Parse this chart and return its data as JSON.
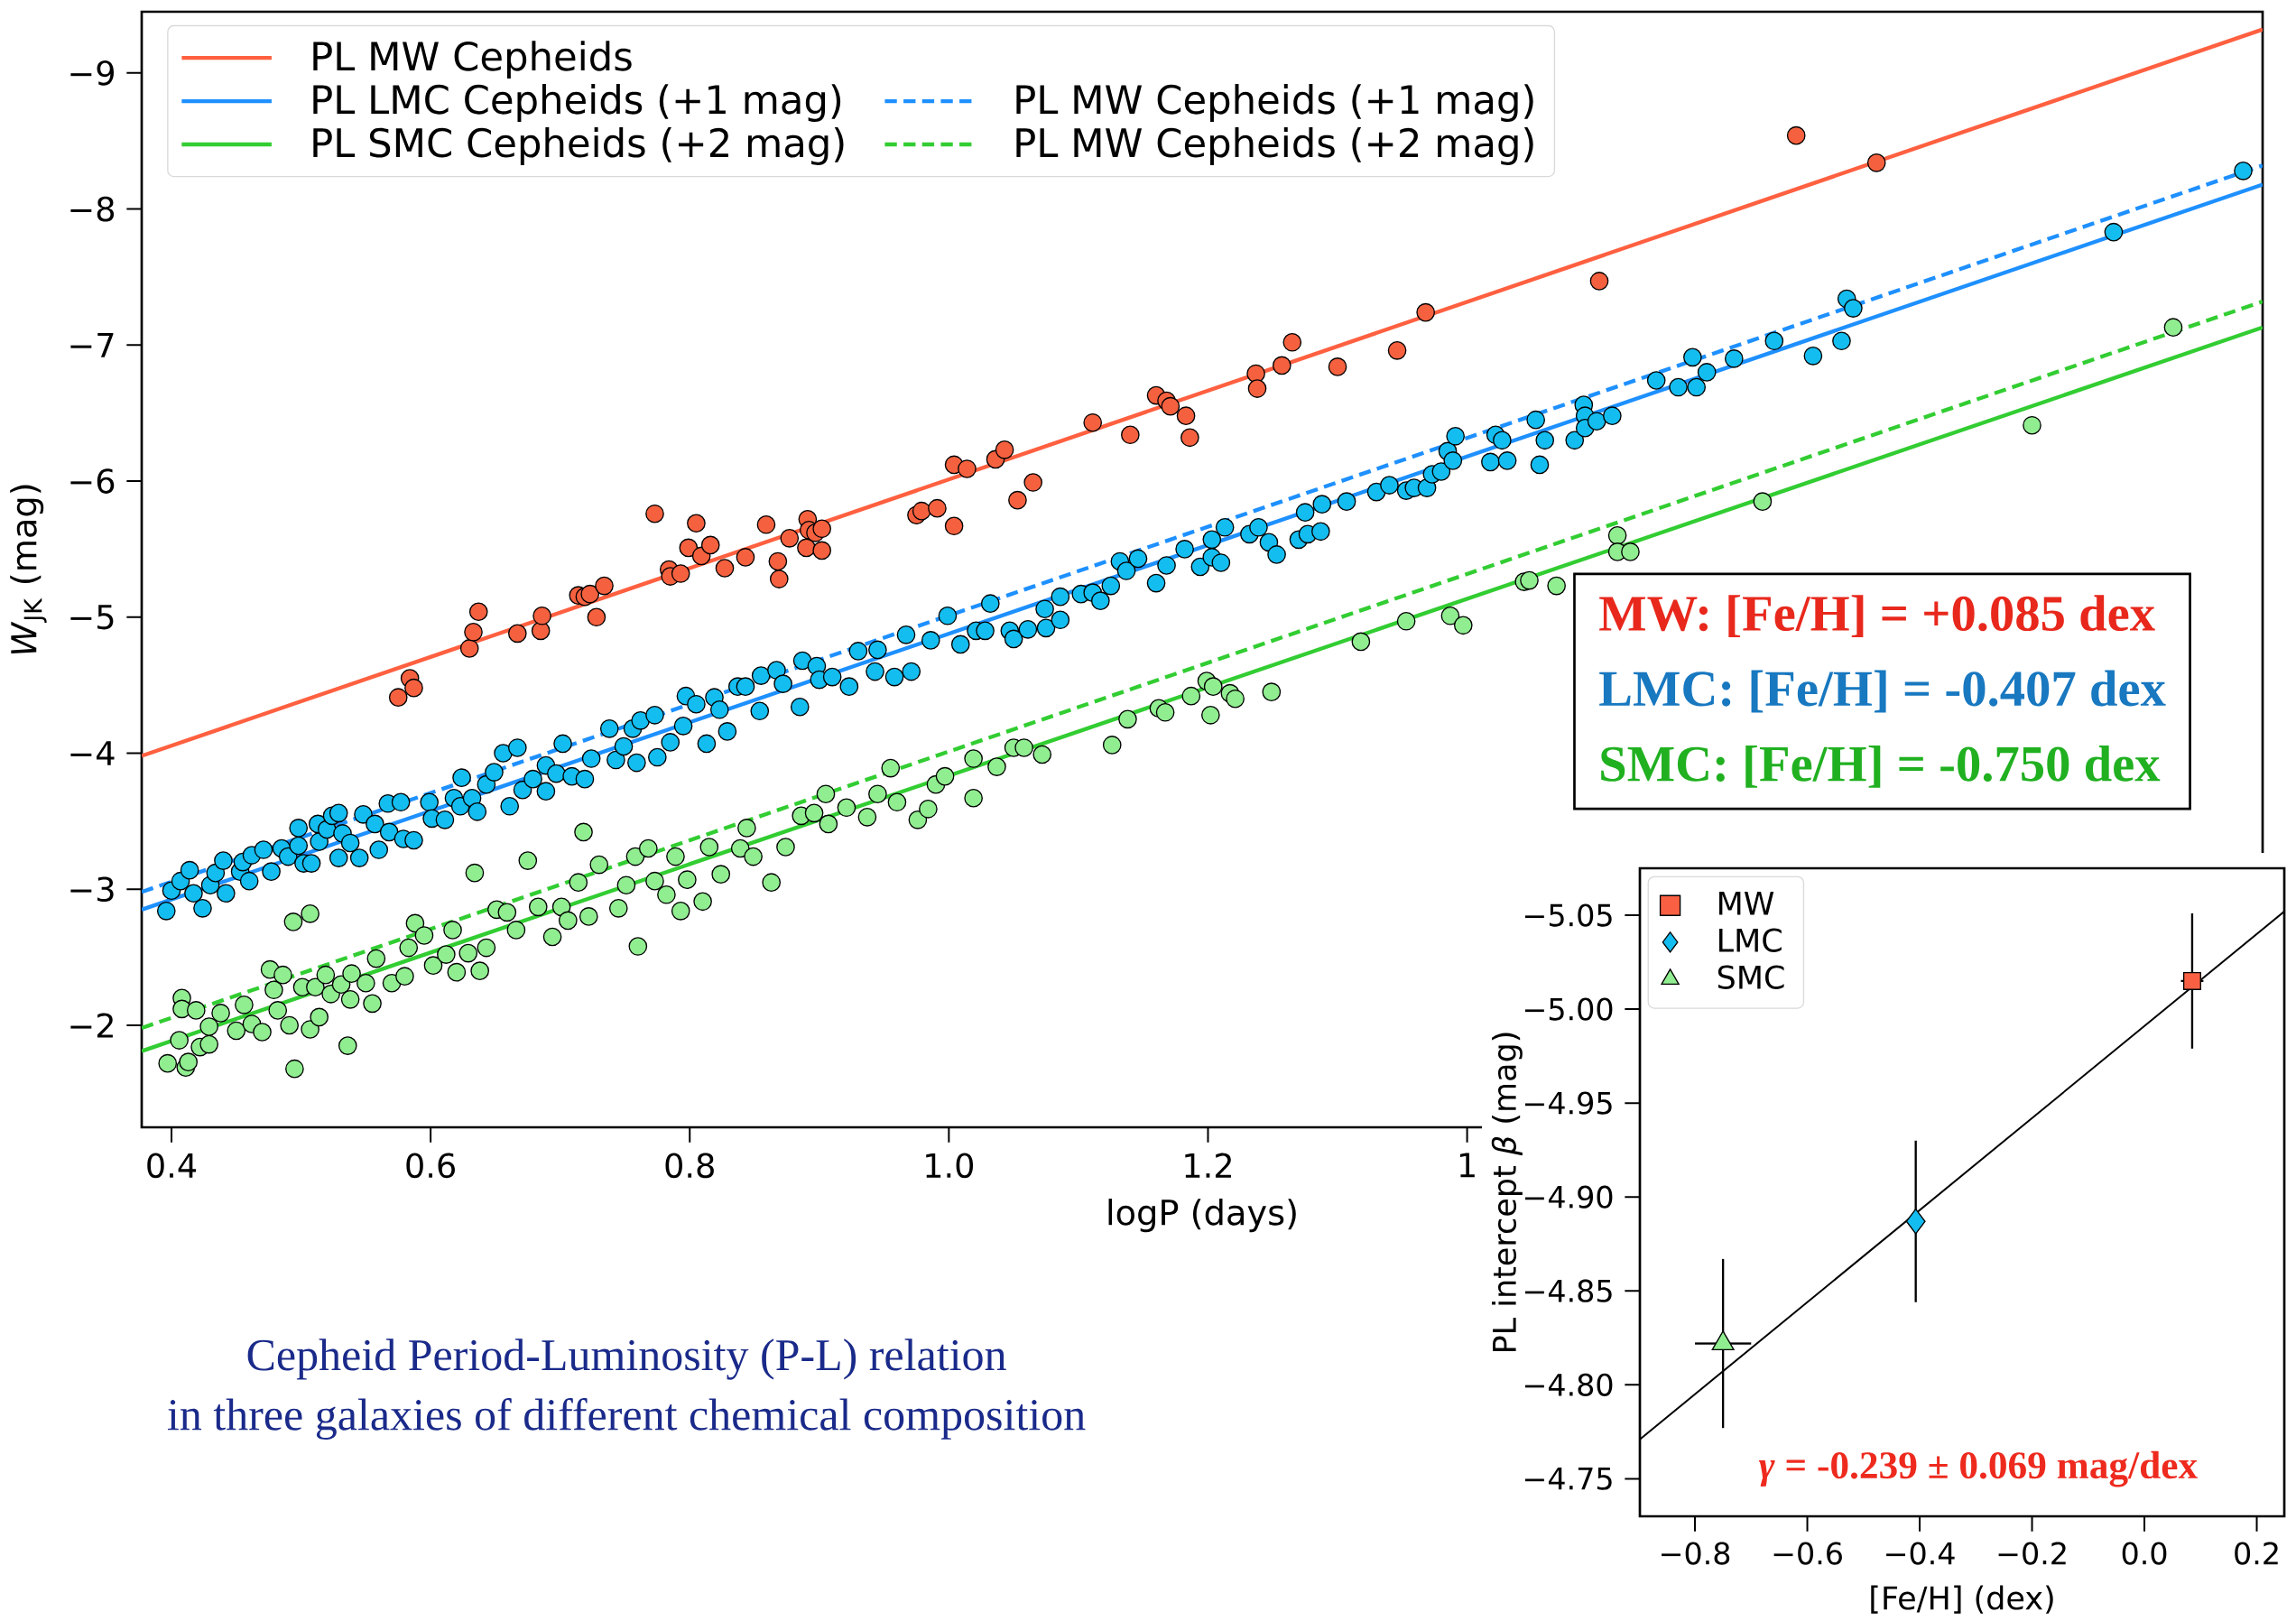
{
  "chart_data": [
    {
      "type": "scatter",
      "xlabel": "logP (days)",
      "ylabel": "*W*$_{JK}$ (mag)",
      "xlim": [
        0.377,
        2.014
      ],
      "ylim": [
        -1.25,
        -9.45
      ],
      "xticks": [
        0.4,
        0.6,
        0.8,
        {
          "value": 1.0,
          "label": "1.0"
        },
        1.2,
        {
          "value": 1.4,
          "label": "1"
        }
      ],
      "yticks": [
        {
          "value": -9,
          "label": "−9"
        },
        {
          "value": -8,
          "label": "−8"
        },
        {
          "value": -7,
          "label": "−7"
        },
        {
          "value": -6,
          "label": "−6"
        },
        {
          "value": -5,
          "label": "−5"
        },
        {
          "value": -4,
          "label": "−4"
        },
        {
          "value": -3,
          "label": "−3"
        },
        {
          "value": -2,
          "label": "−2"
        }
      ],
      "legend": "top left",
      "annotations": [
        "MW:  [Fe/H] = +0.085 dex",
        "LMC: [Fe/H] =  -0.407 dex",
        "SMC: [Fe/H] =  -0.750 dex",
        "Cepheid Period-Luminosity (P-L) relation",
        "in three galaxies of different chemical composition"
      ],
      "series": [
        {
          "marker": "circle",
          "color": "#f5613f",
          "x": [
            0.575,
            0.584,
            0.587,
            0.63,
            0.633,
            0.637,
            0.667,
            0.685,
            0.686,
            0.714,
            0.719,
            0.723,
            0.734,
            0.728,
            0.773,
            0.784,
            0.785,
            0.793,
            0.799,
            0.805,
            0.809,
            0.816,
            0.827,
            0.843,
            0.859,
            0.868,
            0.869,
            0.877,
            0.89,
            0.891,
            0.892,
            0.897,
            0.902,
            0.902,
            0.975,
            0.979,
            0.991,
            1.004,
            1.004,
            1.014,
            1.036,
            1.043,
            1.053,
            1.065,
            1.111,
            1.14,
            1.16,
            1.168,
            1.171,
            1.183,
            1.186,
            1.237,
            1.238,
            1.257,
            1.265,
            1.3,
            1.346,
            1.368,
            1.502,
            1.654,
            1.716
          ],
          "values": [
            -4.41,
            -4.55,
            -4.48,
            -4.77,
            -4.89,
            -5.04,
            -4.88,
            -4.9,
            -5.01,
            -5.16,
            -5.15,
            -5.17,
            -5.23,
            -5.0,
            -5.76,
            -5.35,
            -5.3,
            -5.32,
            -5.51,
            -5.69,
            -5.45,
            -5.53,
            -5.36,
            -5.44,
            -5.68,
            -5.41,
            -5.28,
            -5.58,
            -5.51,
            -5.72,
            -5.64,
            -5.62,
            -5.65,
            -5.49,
            -5.75,
            -5.78,
            -5.8,
            -6.12,
            -5.67,
            -6.09,
            -6.16,
            -6.23,
            -5.86,
            -5.99,
            -6.43,
            -6.34,
            -6.63,
            -6.59,
            -6.55,
            -6.48,
            -6.32,
            -6.79,
            -6.68,
            -6.85,
            -7.02,
            -6.84,
            -6.96,
            -7.24,
            -7.47,
            -8.54,
            -8.34
          ]
        },
        {
          "marker": "circle",
          "color": "#14bdf0",
          "x": [
            0.396,
            0.4,
            0.407,
            0.414,
            0.417,
            0.424,
            0.43,
            0.434,
            0.44,
            0.442,
            0.453,
            0.455,
            0.46,
            0.462,
            0.471,
            0.477,
            0.485,
            0.49,
            0.498,
            0.498,
            0.502,
            0.508,
            0.513,
            0.514,
            0.52,
            0.524,
            0.529,
            0.529,
            0.532,
            0.538,
            0.545,
            0.548,
            0.557,
            0.56,
            0.567,
            0.568,
            0.577,
            0.579,
            0.587,
            0.599,
            0.601,
            0.611,
            0.618,
            0.623,
            0.624,
            0.632,
            0.636,
            0.643,
            0.649,
            0.656,
            0.661,
            0.667,
            0.671,
            0.679,
            0.689,
            0.689,
            0.697,
            0.702,
            0.709,
            0.719,
            0.724,
            0.738,
            0.743,
            0.749,
            0.756,
            0.759,
            0.762,
            0.773,
            0.775,
            0.785,
            0.795,
            0.797,
            0.805,
            0.813,
            0.819,
            0.823,
            0.829,
            0.837,
            0.843,
            0.854,
            0.855,
            0.867,
            0.872,
            0.885,
            0.887,
            0.898,
            0.9,
            0.91,
            0.923,
            0.93,
            0.943,
            0.945,
            0.958,
            0.967,
            0.971,
            0.986,
            0.999,
            1.009,
            1.021,
            1.028,
            1.032,
            1.047,
            1.05,
            1.061,
            1.074,
            1.075,
            1.086,
            1.086,
            1.102,
            1.111,
            1.117,
            1.125,
            1.132,
            1.137,
            1.146,
            1.16,
            1.168,
            1.182,
            1.194,
            1.203,
            1.203,
            1.21,
            1.213,
            1.232,
            1.239,
            1.247,
            1.253,
            1.27,
            1.275,
            1.277,
            1.287,
            1.288,
            1.307,
            1.33,
            1.34,
            1.353,
            1.359,
            1.369,
            1.373,
            1.38,
            1.385,
            1.389,
            1.391,
            1.418,
            1.422,
            1.427,
            1.431,
            1.453,
            1.456,
            1.46,
            1.483,
            1.49,
            1.491,
            1.491,
            1.5,
            1.512,
            1.546,
            1.563,
            1.574,
            1.577,
            1.585,
            1.606,
            1.637,
            1.667,
            1.689,
            1.693,
            1.698,
            1.899,
            1.999
          ],
          "values": [
            -2.84,
            -2.99,
            -3.06,
            -3.14,
            -2.97,
            -2.86,
            -3.03,
            -3.12,
            -3.21,
            -2.97,
            -3.13,
            -3.2,
            -3.06,
            -3.25,
            -3.29,
            -3.13,
            -3.3,
            -3.24,
            -3.32,
            -3.45,
            -3.19,
            -3.19,
            -3.48,
            -3.35,
            -3.44,
            -3.54,
            -3.56,
            -3.23,
            -3.41,
            -3.34,
            -3.23,
            -3.55,
            -3.48,
            -3.29,
            -3.63,
            -3.42,
            -3.64,
            -3.37,
            -3.36,
            -3.64,
            -3.52,
            -3.51,
            -3.67,
            -3.61,
            -3.82,
            -3.67,
            -3.57,
            -3.77,
            -3.86,
            -4.0,
            -3.61,
            -4.04,
            -3.73,
            -3.81,
            -3.91,
            -3.72,
            -3.85,
            -4.07,
            -3.83,
            -3.81,
            -3.96,
            -4.18,
            -3.95,
            -4.05,
            -4.18,
            -3.93,
            -4.24,
            -4.28,
            -3.97,
            -4.08,
            -4.2,
            -4.42,
            -4.36,
            -4.07,
            -4.41,
            -4.32,
            -4.16,
            -4.49,
            -4.49,
            -4.31,
            -4.57,
            -4.61,
            -4.51,
            -4.34,
            -4.68,
            -4.64,
            -4.54,
            -4.56,
            -4.49,
            -4.75,
            -4.6,
            -4.76,
            -4.56,
            -4.87,
            -4.6,
            -4.83,
            -5.01,
            -4.8,
            -4.9,
            -4.9,
            -5.1,
            -4.9,
            -4.84,
            -4.91,
            -5.06,
            -4.92,
            -5.15,
            -4.98,
            -5.17,
            -5.18,
            -5.12,
            -5.23,
            -5.41,
            -5.34,
            -5.43,
            -5.25,
            -5.38,
            -5.5,
            -5.37,
            -5.57,
            -5.44,
            -5.4,
            -5.66,
            -5.61,
            -5.66,
            -5.55,
            -5.46,
            -5.57,
            -5.77,
            -5.61,
            -5.63,
            -5.83,
            -5.85,
            -5.92,
            -5.97,
            -5.93,
            -5.95,
            -5.95,
            -6.05,
            -6.07,
            -6.22,
            -6.15,
            -6.33,
            -6.14,
            -6.34,
            -6.3,
            -6.15,
            -6.45,
            -6.12,
            -6.3,
            -6.3,
            -6.56,
            -6.48,
            -6.39,
            -6.44,
            -6.48,
            -6.74,
            -6.69,
            -6.91,
            -6.69,
            -6.8,
            -6.9,
            -7.03,
            -6.92,
            -7.03,
            -7.34,
            -7.27,
            -7.83,
            -8.28
          ]
        },
        {
          "marker": "circle",
          "color": "#90ee90",
          "x": [
            0.397,
            0.406,
            0.408,
            0.408,
            0.411,
            0.413,
            0.419,
            0.422,
            0.429,
            0.429,
            0.438,
            0.45,
            0.456,
            0.462,
            0.47,
            0.476,
            0.479,
            0.482,
            0.486,
            0.491,
            0.494,
            0.495,
            0.501,
            0.507,
            0.507,
            0.511,
            0.514,
            0.519,
            0.523,
            0.531,
            0.536,
            0.538,
            0.539,
            0.55,
            0.555,
            0.558,
            0.57,
            0.58,
            0.583,
            0.588,
            0.595,
            0.602,
            0.612,
            0.617,
            0.62,
            0.629,
            0.634,
            0.638,
            0.643,
            0.651,
            0.659,
            0.666,
            0.675,
            0.683,
            0.694,
            0.701,
            0.706,
            0.714,
            0.718,
            0.722,
            0.73,
            0.745,
            0.751,
            0.758,
            0.76,
            0.768,
            0.773,
            0.782,
            0.789,
            0.793,
            0.798,
            0.81,
            0.815,
            0.824,
            0.839,
            0.844,
            0.849,
            0.863,
            0.874,
            0.886,
            0.896,
            0.905,
            0.907,
            0.921,
            0.937,
            0.945,
            0.955,
            0.96,
            0.976,
            0.984,
            0.99,
            0.997,
            1.019,
            1.019,
            1.037,
            1.05,
            1.058,
            1.072,
            1.126,
            1.138,
            1.162,
            1.167,
            1.187,
            1.199,
            1.204,
            1.202,
            1.217,
            1.221,
            1.249,
            1.318,
            1.353,
            1.387,
            1.397,
            1.444,
            1.448,
            1.469,
            1.516,
            1.516,
            1.526,
            1.628,
            1.836,
            1.945
          ],
          "values": [
            -1.72,
            -1.89,
            -2.2,
            -2.12,
            -1.69,
            -1.73,
            -2.11,
            -1.84,
            -1.86,
            -1.99,
            -2.09,
            -1.96,
            -2.15,
            -2.01,
            -1.95,
            -2.41,
            -2.26,
            -2.11,
            -2.37,
            -2.0,
            -2.76,
            -1.68,
            -2.28,
            -2.82,
            -1.97,
            -2.28,
            -2.06,
            -2.37,
            -2.23,
            -2.3,
            -1.85,
            -2.19,
            -2.38,
            -2.31,
            -2.16,
            -2.49,
            -2.31,
            -2.36,
            -2.57,
            -2.75,
            -2.66,
            -2.44,
            -2.52,
            -2.7,
            -2.39,
            -2.53,
            -3.12,
            -2.4,
            -2.57,
            -2.85,
            -2.83,
            -2.7,
            -3.21,
            -2.87,
            -2.65,
            -2.87,
            -2.77,
            -3.05,
            -3.42,
            -2.8,
            -3.18,
            -2.86,
            -3.03,
            -3.24,
            -2.58,
            -3.3,
            -3.06,
            -2.96,
            -3.24,
            -2.84,
            -3.07,
            -2.91,
            -3.31,
            -3.11,
            -3.3,
            -3.45,
            -3.24,
            -3.05,
            -3.31,
            -3.54,
            -3.56,
            -3.7,
            -3.48,
            -3.6,
            -3.53,
            -3.7,
            -3.89,
            -3.64,
            -3.51,
            -3.59,
            -3.77,
            -3.83,
            -3.96,
            -3.67,
            -3.9,
            -4.04,
            -4.04,
            -3.99,
            -4.06,
            -4.25,
            -4.33,
            -4.3,
            -4.42,
            -4.53,
            -4.49,
            -4.28,
            -4.44,
            -4.4,
            -4.45,
            -4.82,
            -4.97,
            -5.01,
            -4.94,
            -5.26,
            -5.27,
            -5.23,
            -5.6,
            -5.48,
            -5.48,
            -5.85,
            -6.41,
            -7.13
          ]
        },
        {
          "type": "line",
          "name": "PL MW Cepheids",
          "color": "#ff6040",
          "line_style": "solid",
          "x": [
            0.377,
            2.014
          ],
          "values": [
            -3.98,
            -9.32
          ]
        },
        {
          "type": "line",
          "name": "PL LMC Cepheids (+1 mag)",
          "color": "#1e90ff",
          "line_style": "solid",
          "x": [
            0.377,
            2.014
          ],
          "values": [
            -2.85,
            -8.18
          ]
        },
        {
          "type": "line",
          "name": "PL MW Cepheids  (+1 mag)",
          "color": "#1e90ff",
          "line_style": "dashed",
          "x": [
            0.377,
            2.014
          ],
          "values": [
            -2.98,
            -8.32
          ]
        },
        {
          "type": "line",
          "name": "PL SMC Cepheids (+2 mag)",
          "color": "#32cd32",
          "line_style": "solid",
          "x": [
            0.377,
            2.014
          ],
          "values": [
            -1.81,
            -7.13
          ]
        },
        {
          "type": "line",
          "name": "PL MW Cepheids  (+2 mag)",
          "color": "#32cd32",
          "line_style": "dashed",
          "x": [
            0.377,
            2.014
          ],
          "values": [
            -1.98,
            -7.32
          ]
        }
      ]
    },
    {
      "type": "scatter",
      "xlabel": "[Fe/H] (dex)",
      "ylabel": "PL intercept *β* (mag)",
      "xlim": [
        -0.898,
        0.249
      ],
      "ylim": [
        -4.73,
        -5.075
      ],
      "xticks": [
        {
          "value": -0.8,
          "label": "−0.8"
        },
        {
          "value": -0.6,
          "label": "−0.6"
        },
        {
          "value": -0.4,
          "label": "−0.4"
        },
        {
          "value": -0.2,
          "label": "−0.2"
        },
        {
          "value": 0.0,
          "label": "0.0"
        },
        0.2
      ],
      "yticks": [
        {
          "value": -5.05,
          "label": "−5.05"
        },
        {
          "value": -5.0,
          "label": "−5.00"
        },
        {
          "value": -4.95,
          "label": "−4.95"
        },
        {
          "value": -4.9,
          "label": "−4.90"
        },
        {
          "value": -4.85,
          "label": "−4.85"
        },
        {
          "value": -4.8,
          "label": "−4.80"
        },
        {
          "value": -4.75,
          "label": "−4.75"
        }
      ],
      "legend": "top left",
      "annotations": [
        "*γ* = -0.239 ± 0.069 mag/dex"
      ],
      "series": [
        {
          "name": "MW",
          "marker": "square",
          "color": "#f96043",
          "x": [
            0.085
          ],
          "values": [
            -5.015
          ],
          "errors": [
            0.036
          ],
          "xerrors": [
            0.02
          ]
        },
        {
          "name": "LMC",
          "marker": "diamond",
          "color": "#14bdf0",
          "x": [
            -0.407
          ],
          "values": [
            -4.887
          ],
          "errors": [
            0.043
          ]
        },
        {
          "name": "SMC",
          "marker": "triangle",
          "color": "#90ee90",
          "x": [
            -0.75
          ],
          "values": [
            -4.822
          ],
          "errors": [
            0.045
          ],
          "xerrors": [
            0.05
          ]
        },
        {
          "type": "line",
          "color": "#000000",
          "line_style": "solid",
          "x": [
            -0.898,
            0.249
          ],
          "values": [
            -4.771,
            -5.052
          ]
        }
      ]
    }
  ]
}
